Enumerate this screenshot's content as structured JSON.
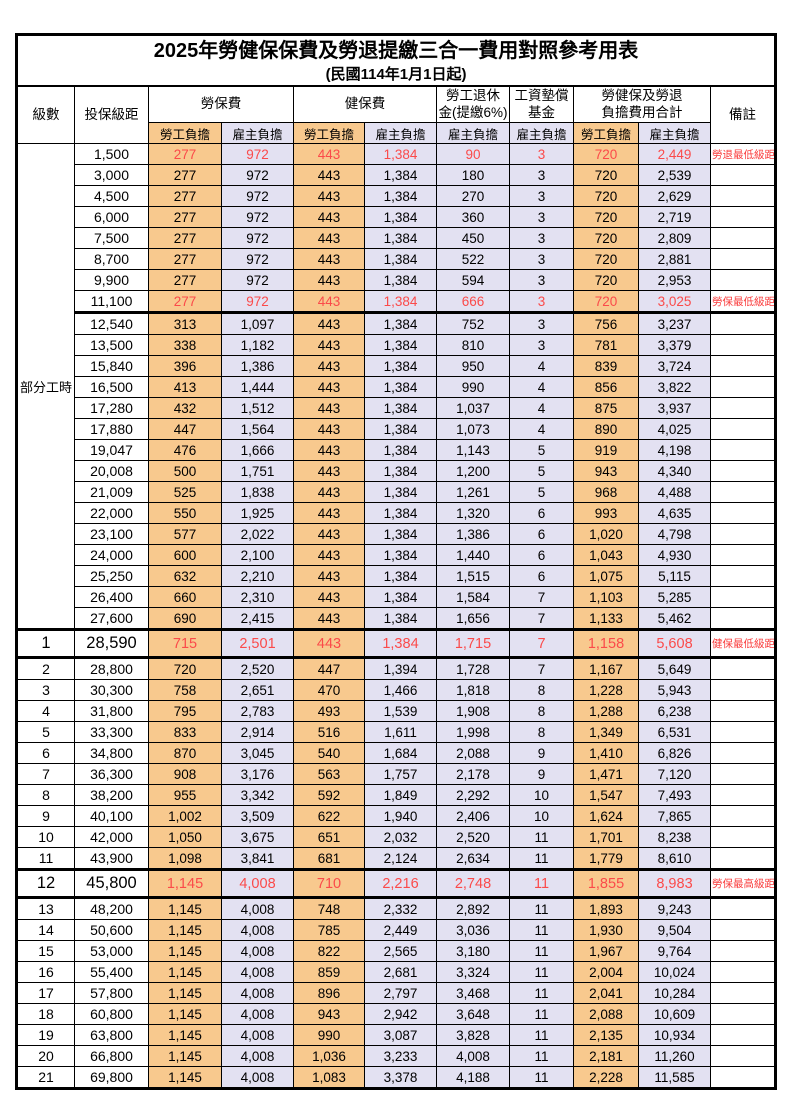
{
  "title": "2025年勞健保保費及勞退提繳三合一費用對照參考用表",
  "subtitle": "(民國114年1月1日起)",
  "header": {
    "level": "級數",
    "bracket": "投保級距",
    "labor_ins": "勞保費",
    "health_ins": "健保費",
    "pension_line1": "勞工退休",
    "pension_line2": "金(提繳6%)",
    "wage_fund_line1": "工資墊償",
    "wage_fund_line2": "基金",
    "total_line1": "勞健保及勞退",
    "total_line2": "負擔費用合計",
    "remark": "備註",
    "employee": "勞工負擔",
    "employer": "雇主負擔"
  },
  "part_time": {
    "label": "部分工時",
    "row_span": 23
  },
  "value_columns": [
    "labor-employee",
    "labor-employer",
    "health-employee",
    "health-employer",
    "pension-employer",
    "wage-fund-employer",
    "total-employee",
    "total-employer"
  ],
  "colors": {
    "employee_bg": "#F8C98E",
    "employer_bg": "#E3E1F2",
    "red_text": "#FB4A4A",
    "remark_red": "#FA3C3C",
    "border": "#000000"
  },
  "rows": [
    {
      "level": "",
      "bracket": "1,500",
      "values": [
        "277",
        "972",
        "443",
        "1,384",
        "90",
        "3",
        "720",
        "2,449"
      ],
      "remark": "勞退最低級距",
      "red": true
    },
    {
      "level": "",
      "bracket": "3,000",
      "values": [
        "277",
        "972",
        "443",
        "1,384",
        "180",
        "3",
        "720",
        "2,539"
      ],
      "remark": ""
    },
    {
      "level": "",
      "bracket": "4,500",
      "values": [
        "277",
        "972",
        "443",
        "1,384",
        "270",
        "3",
        "720",
        "2,629"
      ],
      "remark": ""
    },
    {
      "level": "",
      "bracket": "6,000",
      "values": [
        "277",
        "972",
        "443",
        "1,384",
        "360",
        "3",
        "720",
        "2,719"
      ],
      "remark": ""
    },
    {
      "level": "",
      "bracket": "7,500",
      "values": [
        "277",
        "972",
        "443",
        "1,384",
        "450",
        "3",
        "720",
        "2,809"
      ],
      "remark": ""
    },
    {
      "level": "",
      "bracket": "8,700",
      "values": [
        "277",
        "972",
        "443",
        "1,384",
        "522",
        "3",
        "720",
        "2,881"
      ],
      "remark": ""
    },
    {
      "level": "",
      "bracket": "9,900",
      "values": [
        "277",
        "972",
        "443",
        "1,384",
        "594",
        "3",
        "720",
        "2,953"
      ],
      "remark": ""
    },
    {
      "level": "",
      "bracket": "11,100",
      "values": [
        "277",
        "972",
        "443",
        "1,384",
        "666",
        "3",
        "720",
        "3,025"
      ],
      "remark": "勞保最低級距",
      "red": true,
      "thick_bottom": true
    },
    {
      "level": "",
      "bracket": "12,540",
      "values": [
        "313",
        "1,097",
        "443",
        "1,384",
        "752",
        "3",
        "756",
        "3,237"
      ],
      "remark": ""
    },
    {
      "level": "",
      "bracket": "13,500",
      "values": [
        "338",
        "1,182",
        "443",
        "1,384",
        "810",
        "3",
        "781",
        "3,379"
      ],
      "remark": ""
    },
    {
      "level": "",
      "bracket": "15,840",
      "values": [
        "396",
        "1,386",
        "443",
        "1,384",
        "950",
        "4",
        "839",
        "3,724"
      ],
      "remark": ""
    },
    {
      "level": "",
      "bracket": "16,500",
      "values": [
        "413",
        "1,444",
        "443",
        "1,384",
        "990",
        "4",
        "856",
        "3,822"
      ],
      "remark": ""
    },
    {
      "level": "",
      "bracket": "17,280",
      "values": [
        "432",
        "1,512",
        "443",
        "1,384",
        "1,037",
        "4",
        "875",
        "3,937"
      ],
      "remark": ""
    },
    {
      "level": "",
      "bracket": "17,880",
      "values": [
        "447",
        "1,564",
        "443",
        "1,384",
        "1,073",
        "4",
        "890",
        "4,025"
      ],
      "remark": ""
    },
    {
      "level": "",
      "bracket": "19,047",
      "values": [
        "476",
        "1,666",
        "443",
        "1,384",
        "1,143",
        "5",
        "919",
        "4,198"
      ],
      "remark": ""
    },
    {
      "level": "",
      "bracket": "20,008",
      "values": [
        "500",
        "1,751",
        "443",
        "1,384",
        "1,200",
        "5",
        "943",
        "4,340"
      ],
      "remark": ""
    },
    {
      "level": "",
      "bracket": "21,009",
      "values": [
        "525",
        "1,838",
        "443",
        "1,384",
        "1,261",
        "5",
        "968",
        "4,488"
      ],
      "remark": ""
    },
    {
      "level": "",
      "bracket": "22,000",
      "values": [
        "550",
        "1,925",
        "443",
        "1,384",
        "1,320",
        "6",
        "993",
        "4,635"
      ],
      "remark": ""
    },
    {
      "level": "",
      "bracket": "23,100",
      "values": [
        "577",
        "2,022",
        "443",
        "1,384",
        "1,386",
        "6",
        "1,020",
        "4,798"
      ],
      "remark": ""
    },
    {
      "level": "",
      "bracket": "24,000",
      "values": [
        "600",
        "2,100",
        "443",
        "1,384",
        "1,440",
        "6",
        "1,043",
        "4,930"
      ],
      "remark": ""
    },
    {
      "level": "",
      "bracket": "25,250",
      "values": [
        "632",
        "2,210",
        "443",
        "1,384",
        "1,515",
        "6",
        "1,075",
        "5,115"
      ],
      "remark": ""
    },
    {
      "level": "",
      "bracket": "26,400",
      "values": [
        "660",
        "2,310",
        "443",
        "1,384",
        "1,584",
        "7",
        "1,103",
        "5,285"
      ],
      "remark": ""
    },
    {
      "level": "",
      "bracket": "27,600",
      "values": [
        "690",
        "2,415",
        "443",
        "1,384",
        "1,656",
        "7",
        "1,133",
        "5,462"
      ],
      "remark": ""
    },
    {
      "level": "1",
      "bracket": "28,590",
      "values": [
        "715",
        "2,501",
        "443",
        "1,384",
        "1,715",
        "7",
        "1,158",
        "5,608"
      ],
      "remark": "健保最低級距",
      "red": true,
      "key": true
    },
    {
      "level": "2",
      "bracket": "28,800",
      "values": [
        "720",
        "2,520",
        "447",
        "1,394",
        "1,728",
        "7",
        "1,167",
        "5,649"
      ],
      "remark": ""
    },
    {
      "level": "3",
      "bracket": "30,300",
      "values": [
        "758",
        "2,651",
        "470",
        "1,466",
        "1,818",
        "8",
        "1,228",
        "5,943"
      ],
      "remark": ""
    },
    {
      "level": "4",
      "bracket": "31,800",
      "values": [
        "795",
        "2,783",
        "493",
        "1,539",
        "1,908",
        "8",
        "1,288",
        "6,238"
      ],
      "remark": ""
    },
    {
      "level": "5",
      "bracket": "33,300",
      "values": [
        "833",
        "2,914",
        "516",
        "1,611",
        "1,998",
        "8",
        "1,349",
        "6,531"
      ],
      "remark": ""
    },
    {
      "level": "6",
      "bracket": "34,800",
      "values": [
        "870",
        "3,045",
        "540",
        "1,684",
        "2,088",
        "9",
        "1,410",
        "6,826"
      ],
      "remark": ""
    },
    {
      "level": "7",
      "bracket": "36,300",
      "values": [
        "908",
        "3,176",
        "563",
        "1,757",
        "2,178",
        "9",
        "1,471",
        "7,120"
      ],
      "remark": ""
    },
    {
      "level": "8",
      "bracket": "38,200",
      "values": [
        "955",
        "3,342",
        "592",
        "1,849",
        "2,292",
        "10",
        "1,547",
        "7,493"
      ],
      "remark": ""
    },
    {
      "level": "9",
      "bracket": "40,100",
      "values": [
        "1,002",
        "3,509",
        "622",
        "1,940",
        "2,406",
        "10",
        "1,624",
        "7,865"
      ],
      "remark": ""
    },
    {
      "level": "10",
      "bracket": "42,000",
      "values": [
        "1,050",
        "3,675",
        "651",
        "2,032",
        "2,520",
        "11",
        "1,701",
        "8,238"
      ],
      "remark": ""
    },
    {
      "level": "11",
      "bracket": "43,900",
      "values": [
        "1,098",
        "3,841",
        "681",
        "2,124",
        "2,634",
        "11",
        "1,779",
        "8,610"
      ],
      "remark": ""
    },
    {
      "level": "12",
      "bracket": "45,800",
      "values": [
        "1,145",
        "4,008",
        "710",
        "2,216",
        "2,748",
        "11",
        "1,855",
        "8,983"
      ],
      "remark": "勞保最高級距",
      "red": true,
      "key": true
    },
    {
      "level": "13",
      "bracket": "48,200",
      "values": [
        "1,145",
        "4,008",
        "748",
        "2,332",
        "2,892",
        "11",
        "1,893",
        "9,243"
      ],
      "remark": ""
    },
    {
      "level": "14",
      "bracket": "50,600",
      "values": [
        "1,145",
        "4,008",
        "785",
        "2,449",
        "3,036",
        "11",
        "1,930",
        "9,504"
      ],
      "remark": ""
    },
    {
      "level": "15",
      "bracket": "53,000",
      "values": [
        "1,145",
        "4,008",
        "822",
        "2,565",
        "3,180",
        "11",
        "1,967",
        "9,764"
      ],
      "remark": ""
    },
    {
      "level": "16",
      "bracket": "55,400",
      "values": [
        "1,145",
        "4,008",
        "859",
        "2,681",
        "3,324",
        "11",
        "2,004",
        "10,024"
      ],
      "remark": ""
    },
    {
      "level": "17",
      "bracket": "57,800",
      "values": [
        "1,145",
        "4,008",
        "896",
        "2,797",
        "3,468",
        "11",
        "2,041",
        "10,284"
      ],
      "remark": ""
    },
    {
      "level": "18",
      "bracket": "60,800",
      "values": [
        "1,145",
        "4,008",
        "943",
        "2,942",
        "3,648",
        "11",
        "2,088",
        "10,609"
      ],
      "remark": ""
    },
    {
      "level": "19",
      "bracket": "63,800",
      "values": [
        "1,145",
        "4,008",
        "990",
        "3,087",
        "3,828",
        "11",
        "2,135",
        "10,934"
      ],
      "remark": ""
    },
    {
      "level": "20",
      "bracket": "66,800",
      "values": [
        "1,145",
        "4,008",
        "1,036",
        "3,233",
        "4,008",
        "11",
        "2,181",
        "11,260"
      ],
      "remark": ""
    },
    {
      "level": "21",
      "bracket": "69,800",
      "values": [
        "1,145",
        "4,008",
        "1,083",
        "3,378",
        "4,188",
        "11",
        "2,228",
        "11,585"
      ],
      "remark": ""
    }
  ]
}
